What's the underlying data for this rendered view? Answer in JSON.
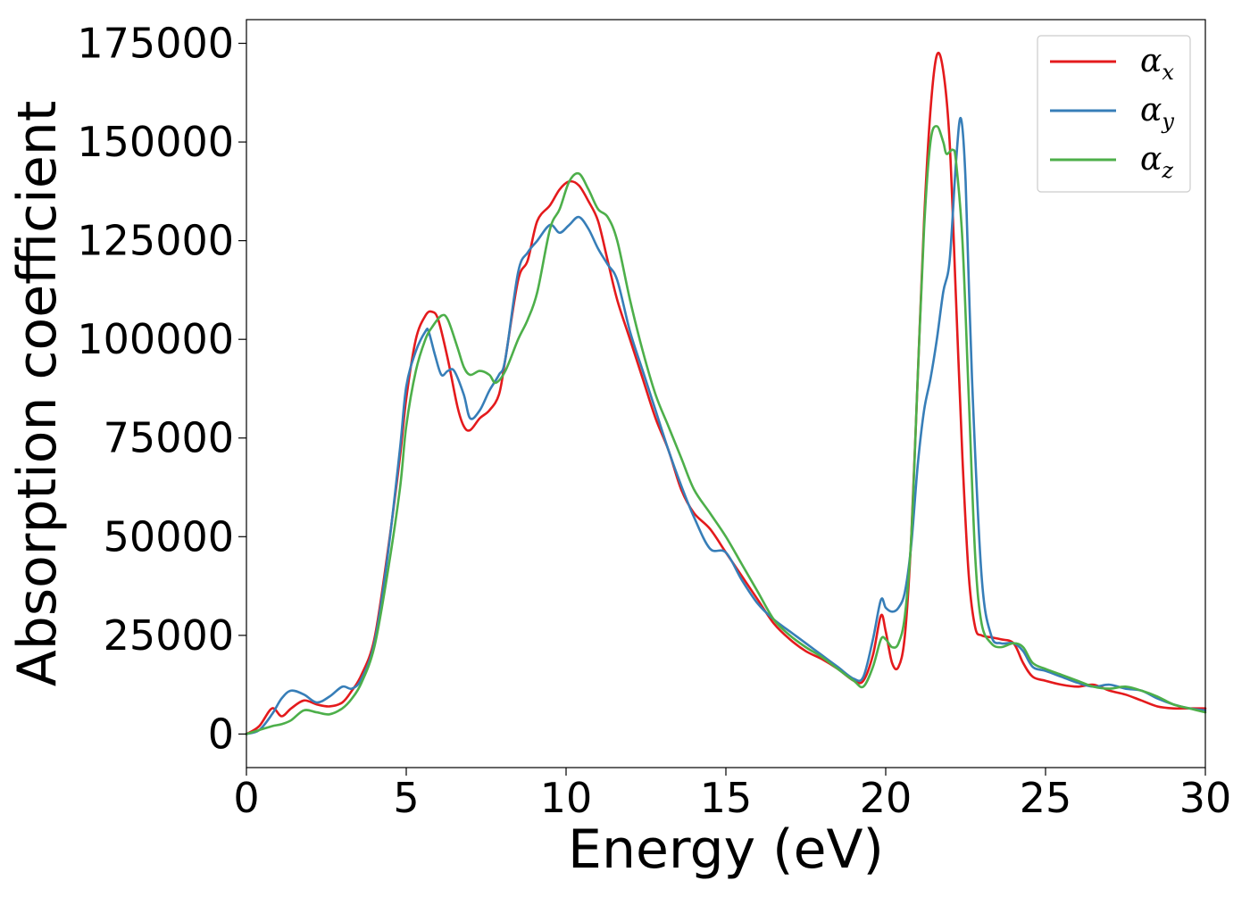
{
  "chart_data": {
    "type": "line",
    "xlabel": "Energy (eV)",
    "ylabel": "Absorption coefficient",
    "xlim": [
      0,
      30
    ],
    "ylim": [
      -8500,
      181000
    ],
    "xticks": [
      "0",
      "5",
      "10",
      "15",
      "20",
      "25",
      "30"
    ],
    "yticks": [
      "0",
      "25000",
      "50000",
      "75000",
      "100000",
      "125000",
      "150000",
      "175000"
    ],
    "grid": false,
    "legend_position": "top-right",
    "series": [
      {
        "name": "α",
        "subscript": "x",
        "color": "#e41a1c",
        "x": [
          0,
          0.4,
          0.8,
          1.1,
          1.4,
          1.8,
          2.2,
          2.6,
          3.0,
          3.3,
          3.6,
          4.0,
          4.4,
          4.8,
          5.0,
          5.3,
          5.6,
          5.8,
          6.0,
          6.3,
          6.6,
          6.8,
          7.0,
          7.3,
          7.6,
          7.9,
          8.1,
          8.5,
          8.8,
          9.1,
          9.5,
          9.8,
          10.1,
          10.4,
          10.7,
          11.0,
          11.3,
          11.6,
          12.0,
          12.4,
          12.8,
          13.2,
          13.6,
          14.0,
          14.5,
          15.0,
          15.5,
          16.0,
          16.5,
          17.0,
          17.5,
          18.0,
          18.5,
          19.0,
          19.3,
          19.6,
          19.85,
          20.0,
          20.2,
          20.4,
          20.6,
          20.8,
          21.0,
          21.2,
          21.4,
          21.6,
          21.8,
          22.0,
          22.2,
          22.4,
          22.6,
          22.8,
          23.0,
          23.3,
          23.6,
          24.0,
          24.3,
          24.6,
          25.0,
          25.5,
          26.0,
          26.5,
          27.0,
          27.5,
          28.0,
          28.5,
          29.0,
          29.5,
          30.0
        ],
        "y": [
          0,
          2000,
          6500,
          4500,
          6500,
          8500,
          7500,
          7000,
          8000,
          11000,
          15000,
          24000,
          45000,
          70000,
          85000,
          100000,
          106000,
          107000,
          105000,
          95000,
          83000,
          78000,
          77000,
          80000,
          82000,
          86000,
          95000,
          115000,
          120000,
          130000,
          134000,
          138000,
          140000,
          139000,
          135000,
          130000,
          120000,
          110000,
          100000,
          90000,
          80000,
          72000,
          62000,
          56000,
          52000,
          46000,
          40000,
          34000,
          28000,
          24000,
          21000,
          19000,
          16500,
          13500,
          13500,
          20000,
          30000,
          26000,
          18000,
          17000,
          25000,
          50000,
          90000,
          130000,
          158000,
          172000,
          168000,
          150000,
          110000,
          70000,
          40000,
          27000,
          25000,
          24500,
          24000,
          23000,
          18000,
          14500,
          13500,
          12500,
          12000,
          12500,
          11000,
          10000,
          8500,
          7000,
          6500,
          6500,
          6500
        ]
      },
      {
        "name": "α",
        "subscript": "y",
        "color": "#377eb8",
        "x": [
          0,
          0.4,
          0.8,
          1.1,
          1.4,
          1.8,
          2.2,
          2.6,
          3.0,
          3.3,
          3.6,
          4.0,
          4.4,
          4.8,
          5.0,
          5.3,
          5.6,
          5.7,
          5.9,
          6.1,
          6.3,
          6.5,
          6.8,
          7.0,
          7.3,
          7.6,
          7.9,
          8.1,
          8.5,
          8.8,
          9.1,
          9.5,
          9.8,
          10.1,
          10.4,
          10.7,
          11.0,
          11.3,
          11.6,
          12.0,
          12.4,
          12.8,
          13.2,
          13.6,
          14.0,
          14.5,
          15.0,
          15.5,
          16.0,
          16.5,
          17.0,
          17.5,
          18.0,
          18.5,
          19.0,
          19.3,
          19.6,
          19.85,
          20.0,
          20.2,
          20.4,
          20.6,
          20.8,
          21.0,
          21.2,
          21.4,
          21.6,
          21.8,
          22.0,
          22.2,
          22.35,
          22.5,
          22.7,
          23.0,
          23.3,
          23.6,
          24.0,
          24.3,
          24.6,
          25.0,
          25.5,
          26.0,
          26.5,
          27.0,
          27.5,
          28.0,
          28.5,
          29.0,
          29.5,
          30.0
        ],
        "y": [
          0,
          1000,
          5000,
          9000,
          11000,
          10000,
          8000,
          9500,
          12000,
          11500,
          14000,
          23000,
          44000,
          72000,
          88000,
          97000,
          102000,
          102000,
          96000,
          91000,
          92000,
          92000,
          86000,
          80000,
          82000,
          87000,
          91000,
          95000,
          117000,
          122000,
          125000,
          129000,
          127000,
          129000,
          131000,
          128000,
          123000,
          119000,
          115000,
          102000,
          92000,
          82000,
          72000,
          63000,
          55000,
          47000,
          46000,
          39000,
          33000,
          29000,
          26000,
          23000,
          20000,
          17000,
          14000,
          14500,
          24000,
          34000,
          32000,
          31000,
          32000,
          36000,
          48000,
          68000,
          82000,
          90000,
          100000,
          112000,
          120000,
          145000,
          156000,
          140000,
          90000,
          40000,
          25000,
          23000,
          23000,
          21000,
          17000,
          16000,
          14500,
          13000,
          12000,
          12500,
          11500,
          11000,
          9000,
          7500,
          6500,
          6000
        ]
      },
      {
        "name": "α",
        "subscript": "z",
        "color": "#4daf4a",
        "x": [
          0,
          0.4,
          0.8,
          1.1,
          1.4,
          1.8,
          2.2,
          2.6,
          3.0,
          3.3,
          3.6,
          4.0,
          4.4,
          4.8,
          5.0,
          5.3,
          5.6,
          5.8,
          6.1,
          6.3,
          6.6,
          6.8,
          7.0,
          7.3,
          7.6,
          7.8,
          8.1,
          8.5,
          8.8,
          9.1,
          9.5,
          9.8,
          10.1,
          10.4,
          10.7,
          11.0,
          11.3,
          11.6,
          12.0,
          12.4,
          12.8,
          13.2,
          13.6,
          14.0,
          14.5,
          15.0,
          15.5,
          16.0,
          16.5,
          17.0,
          17.5,
          18.0,
          18.5,
          19.0,
          19.3,
          19.6,
          19.85,
          20.0,
          20.2,
          20.4,
          20.6,
          20.8,
          21.0,
          21.2,
          21.4,
          21.6,
          21.8,
          21.9,
          22.1,
          22.2,
          22.4,
          22.6,
          22.8,
          23.0,
          23.3,
          23.6,
          24.0,
          24.3,
          24.6,
          25.0,
          25.5,
          26.0,
          26.5,
          27.0,
          27.5,
          28.0,
          28.5,
          29.0,
          29.5,
          30.0
        ],
        "y": [
          0,
          1000,
          2000,
          2500,
          3500,
          6000,
          5500,
          5000,
          6500,
          9000,
          13000,
          22000,
          40000,
          62000,
          78000,
          92000,
          100000,
          103000,
          106000,
          105000,
          98000,
          93000,
          91000,
          92000,
          91000,
          89000,
          92000,
          100000,
          105000,
          112000,
          128000,
          133000,
          140000,
          142000,
          138000,
          133000,
          131000,
          125000,
          110000,
          97000,
          86000,
          78000,
          70000,
          62000,
          56000,
          50000,
          43000,
          36000,
          29000,
          25000,
          22000,
          19500,
          16500,
          13500,
          12000,
          17000,
          24000,
          24000,
          22000,
          23000,
          30000,
          50000,
          90000,
          128000,
          150000,
          154000,
          150000,
          147000,
          148000,
          145000,
          125000,
          85000,
          45000,
          28000,
          23000,
          22000,
          23000,
          22000,
          18000,
          16500,
          15000,
          13500,
          12000,
          11500,
          12000,
          11000,
          9500,
          7500,
          6500,
          5500
        ]
      }
    ]
  }
}
